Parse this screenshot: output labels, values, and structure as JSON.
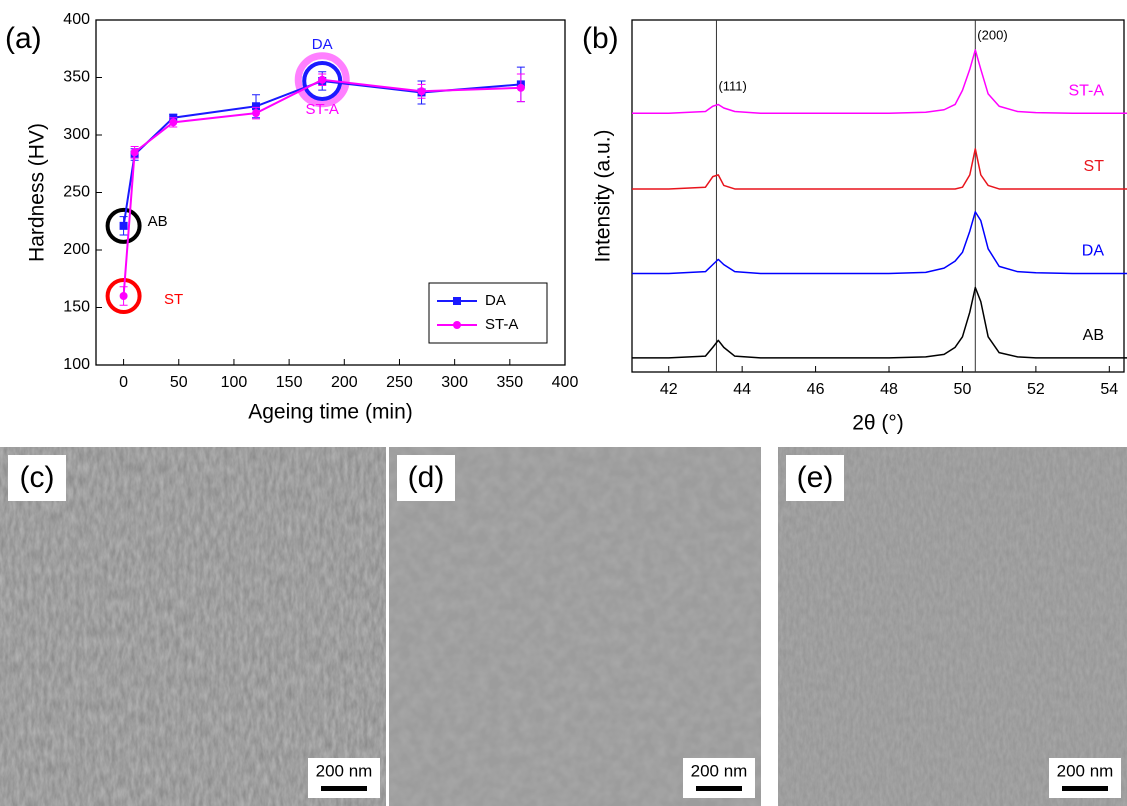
{
  "chart_data": [
    {
      "type": "line",
      "panel_label": "(a)",
      "x_label": "Ageing time (min)",
      "y_label": "Hardness (HV)",
      "x": [
        0,
        10,
        45,
        120,
        180,
        270,
        360
      ],
      "series": [
        {
          "name": "DA",
          "color": "#1a1aff",
          "marker": "square",
          "values": [
            221,
            283,
            315,
            325,
            347,
            337,
            344
          ],
          "errors": [
            8,
            5,
            3,
            10,
            8,
            10,
            15
          ]
        },
        {
          "name": "ST-A",
          "color": "#ff00ff",
          "marker": "circle",
          "values": [
            160,
            285,
            311,
            319,
            348,
            338,
            341
          ],
          "errors": [
            8,
            5,
            4,
            5,
            5,
            6,
            12
          ]
        }
      ],
      "annotations": [
        {
          "text": "AB",
          "x": 0,
          "y": 221,
          "color": "#000000"
        },
        {
          "text": "ST",
          "x": 0,
          "y": 160,
          "color": "#ff0000"
        },
        {
          "text": "DA",
          "x": 180,
          "y": 347,
          "color": "#1a1aff"
        },
        {
          "text": "ST-A",
          "x": 180,
          "y": 348,
          "color": "#ff00ff"
        }
      ],
      "xlim": [
        -25,
        400
      ],
      "ylim": [
        100,
        400
      ],
      "xticks": [
        0,
        50,
        100,
        150,
        200,
        250,
        300,
        350,
        400
      ],
      "yticks": [
        100,
        150,
        200,
        250,
        300,
        350,
        400
      ],
      "legend": "lower-right"
    },
    {
      "type": "xrd",
      "panel_label": "(b)",
      "x_label": "2θ (°)",
      "y_label": "Intensity (a.u.)",
      "x": [
        41,
        42,
        43,
        43.2,
        43.35,
        43.5,
        43.8,
        44.5,
        46,
        48,
        49,
        49.5,
        49.8,
        50.0,
        50.2,
        50.35,
        50.5,
        50.7,
        51,
        51.5,
        52,
        53,
        54.5
      ],
      "series": [
        {
          "name": "AB",
          "color": "#000000",
          "values": [
            4,
            4,
            4.5,
            7,
            9,
            7,
            4.5,
            4,
            4,
            4,
            4.3,
            5,
            7,
            10,
            17,
            24,
            20,
            10,
            5.5,
            4.3,
            4,
            4,
            4
          ]
        },
        {
          "name": "DA",
          "color": "#0000ff",
          "values": [
            28,
            28,
            28.5,
            30.5,
            32,
            30.5,
            28.5,
            28,
            28,
            28,
            28.3,
            29.5,
            31.5,
            34,
            40,
            45.5,
            43,
            35,
            30,
            28.5,
            28.2,
            28,
            28
          ]
        },
        {
          "name": "ST",
          "color": "#e8141c",
          "values": [
            52,
            52,
            52.5,
            55.5,
            56,
            53,
            52,
            52,
            52,
            52,
            52,
            52,
            52,
            52.5,
            56,
            63.4,
            56,
            53,
            52,
            52,
            52,
            52,
            52
          ]
        },
        {
          "name": "ST-A",
          "color": "#ff00ff",
          "values": [
            73.5,
            73.5,
            74,
            75.5,
            76,
            75,
            74,
            73.5,
            73.5,
            73.5,
            73.8,
            74.5,
            76,
            80,
            86,
            91.5,
            86,
            79,
            75.5,
            74,
            73.7,
            73.5,
            73.5
          ]
        }
      ],
      "reference_lines": [
        {
          "x": 43.3,
          "label": "(111)"
        },
        {
          "x": 50.35,
          "label": "(200)"
        }
      ],
      "xlim": [
        41,
        54.4
      ],
      "ylim": [
        0,
        100
      ],
      "xticks": [
        42,
        44,
        46,
        48,
        50,
        52,
        54
      ]
    }
  ],
  "micrographs": [
    {
      "label": "(c)",
      "scale_bar": "200 nm"
    },
    {
      "label": "(d)",
      "scale_bar": "200 nm"
    },
    {
      "label": "(e)",
      "scale_bar": "200 nm"
    }
  ]
}
